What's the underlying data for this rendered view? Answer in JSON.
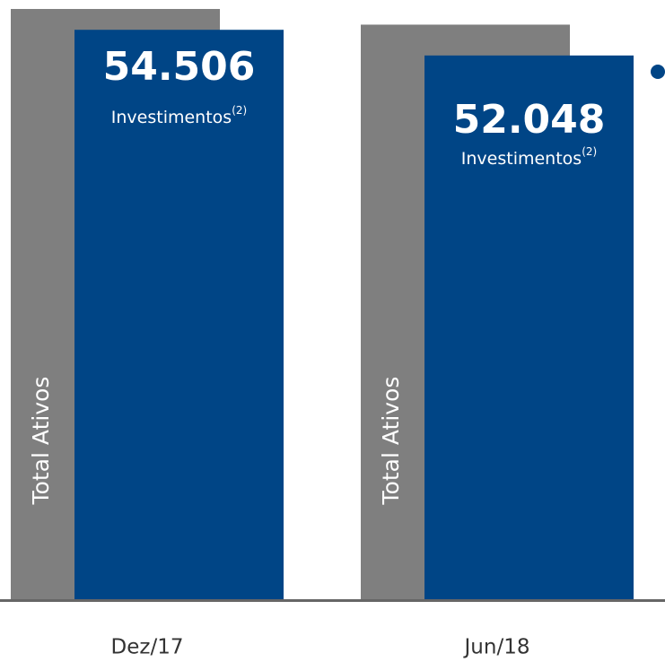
{
  "chart_data": {
    "type": "bar",
    "categories": [
      "Dez/17",
      "Jun/18"
    ],
    "series": [
      {
        "name": "Total Ativos",
        "color": "#7f7f7f",
        "values": [
          56500,
          55000
        ]
      },
      {
        "name": "Investimentos",
        "footnote": "(2)",
        "color": "#004586",
        "values": [
          54506,
          52048
        ],
        "value_labels": [
          "54.506",
          "52.048"
        ]
      }
    ]
  }
}
